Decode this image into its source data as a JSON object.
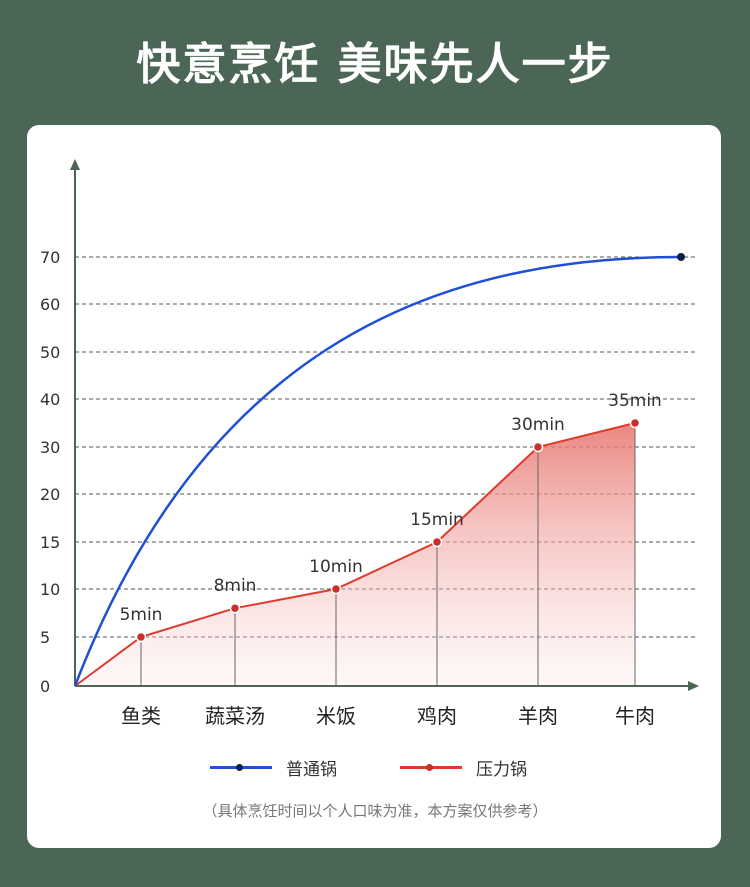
{
  "title": "快意烹饪 美味先人一步",
  "note": "（具体烹饪时间以个人口味为准，本方案仅供参考）",
  "colors": {
    "background": "#4b6655",
    "normal_line": "#1f4fd6",
    "pressure_line": "#e03a2f",
    "pressure_point": "#c9302a",
    "normal_point": "#0a1f4a"
  },
  "chart_data": {
    "type": "line",
    "title": "",
    "xlabel": "",
    "ylabel": "",
    "categories": [
      "鱼类",
      "蔬菜汤",
      "米饭",
      "鸡肉",
      "羊肉",
      "牛肉"
    ],
    "y_ticks": [
      "0",
      "5",
      "10",
      "15",
      "20",
      "30",
      "40",
      "50",
      "60",
      "70"
    ],
    "grid": "horizontal dashed",
    "legend_position": "bottom",
    "series": [
      {
        "name": "普通锅",
        "style": "smooth curve rising from origin and leveling at 70",
        "x": [
          "origin",
          "鱼类",
          "蔬菜汤",
          "米饭",
          "鸡肉",
          "羊肉",
          "牛肉",
          "end"
        ],
        "values": [
          0,
          15,
          30,
          50,
          60,
          66,
          70,
          70
        ]
      },
      {
        "name": "压力锅",
        "style": "line with gradient fill",
        "values": [
          5,
          8,
          10,
          15,
          30,
          35
        ],
        "labels": [
          "5min",
          "8min",
          "10min",
          "15min",
          "30min",
          "35min"
        ]
      }
    ]
  }
}
